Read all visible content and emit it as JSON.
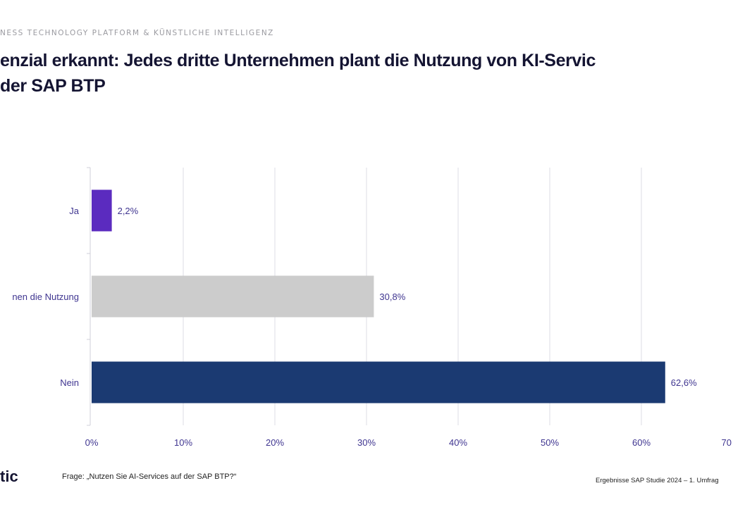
{
  "header": {
    "kicker": "NESS TECHNOLOGY PLATFORM & KÜNSTLICHE INTELLIGENZ",
    "title_line1": "enzial erkannt: Jedes dritte Unternehmen plant die Nutzung von KI-Servic",
    "title_line2": "der SAP BTP"
  },
  "chart_data": {
    "type": "bar",
    "orientation": "horizontal",
    "categories": [
      "Ja",
      "nen die Nutzung",
      "Nein"
    ],
    "values": [
      2.2,
      30.8,
      62.6
    ],
    "data_labels": [
      "2,2%",
      "30,8%",
      "62,6%"
    ],
    "colors": [
      "#5b2bbf",
      "#cccccc",
      "#1b3a72"
    ],
    "xlim": [
      0,
      70
    ],
    "xticks": [
      0,
      10,
      20,
      30,
      40,
      50,
      60,
      70
    ],
    "xtick_labels": [
      "0%",
      "10%",
      "20%",
      "30%",
      "40%",
      "50%",
      "60%",
      "70"
    ],
    "grid": true,
    "label_color": "#3f3590"
  },
  "footer": {
    "logo": "tic",
    "question": "Frage: „Nutzen Sie AI-Services  auf der SAP BTP?“",
    "source": "Ergebnisse SAP Studie 2024 – 1. Umfrag"
  }
}
